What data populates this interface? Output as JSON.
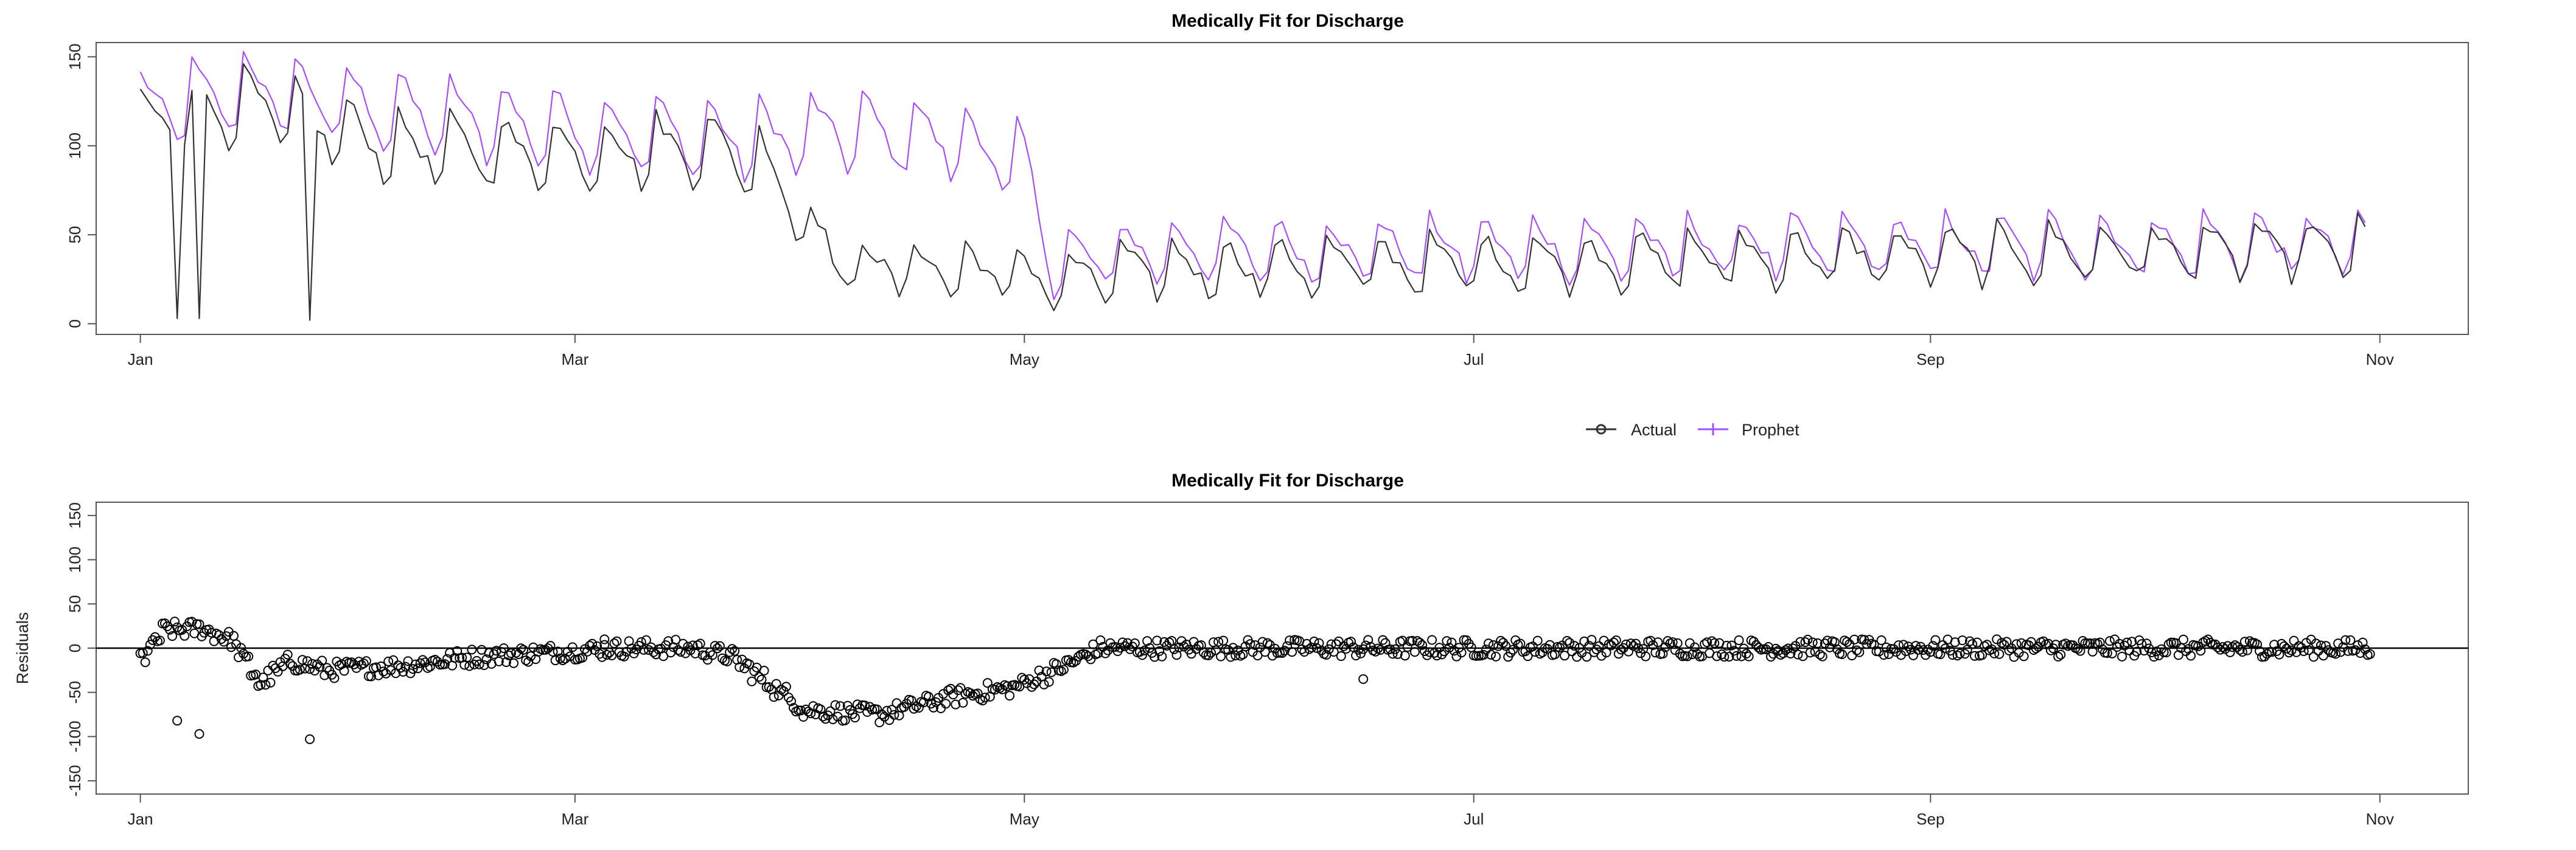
{
  "colors": {
    "actual": "#333333",
    "prophet": "#a64dff",
    "residual_points": "#000000",
    "axis": "#555555"
  },
  "legend": {
    "actual_label": "Actual",
    "prophet_label": "Prophet"
  },
  "chart_data": [
    {
      "type": "line",
      "title": "Medically Fit for Discharge",
      "xlabel": "",
      "ylabel": "",
      "x_axis": {
        "range_days": [
          -6,
          316
        ],
        "ticks": [
          {
            "day": 0,
            "label": "Jan"
          },
          {
            "day": 59,
            "label": "Mar"
          },
          {
            "day": 120,
            "label": "May"
          },
          {
            "day": 181,
            "label": "Jul"
          },
          {
            "day": 243,
            "label": "Sep"
          },
          {
            "day": 304,
            "label": "Nov"
          }
        ]
      },
      "y_axis": {
        "ylim": [
          -6,
          158
        ],
        "ticks": [
          0,
          50,
          100,
          150
        ]
      },
      "legend_position": "bottom-center",
      "series": [
        {
          "name": "Actual",
          "daily": true,
          "x_range_days": [
            0,
            302
          ],
          "level_profile": [
            [
              0,
              108
            ],
            [
              15,
              120
            ],
            [
              35,
              95
            ],
            [
              60,
              92
            ],
            [
              78,
              96
            ],
            [
              85,
              85
            ],
            [
              95,
              30
            ],
            [
              110,
              28
            ],
            [
              120,
              25
            ],
            [
              124,
              20
            ],
            [
              135,
              28
            ],
            [
              302,
              40
            ]
          ],
          "weekly_amplitude": 22,
          "anomalies": [
            {
              "day": 5,
              "value": 3
            },
            {
              "day": 8,
              "value": 3
            },
            {
              "day": 23,
              "value": 2
            }
          ]
        },
        {
          "name": "Prophet",
          "daily": true,
          "x_range_days": [
            0,
            302
          ],
          "level_profile": [
            [
              0,
              115
            ],
            [
              15,
              128
            ],
            [
              35,
              115
            ],
            [
              60,
              105
            ],
            [
              78,
              100
            ],
            [
              85,
              100
            ],
            [
              95,
              105
            ],
            [
              110,
              100
            ],
            [
              120,
              85
            ],
            [
              124,
              30
            ],
            [
              135,
              38
            ],
            [
              302,
              42
            ]
          ],
          "weekly_amplitude": 25
        }
      ]
    },
    {
      "type": "scatter",
      "title": "Medically Fit for Discharge",
      "xlabel": "",
      "ylabel": "Residuals",
      "x_axis": {
        "range_days": [
          -6,
          316
        ],
        "ticks": [
          {
            "day": 0,
            "label": "Jan"
          },
          {
            "day": 59,
            "label": "Mar"
          },
          {
            "day": 120,
            "label": "May"
          },
          {
            "day": 181,
            "label": "Jul"
          },
          {
            "day": 243,
            "label": "Sep"
          },
          {
            "day": 304,
            "label": "Nov"
          }
        ]
      },
      "y_axis": {
        "ylim": [
          -165,
          165
        ],
        "ticks": [
          -150,
          -100,
          -50,
          0,
          50,
          100,
          150
        ]
      },
      "reference_line_y": 0,
      "series": [
        {
          "name": "Residuals",
          "points_per_day": 3,
          "x_range_days": [
            0,
            302
          ],
          "level_profile": [
            [
              0,
              -10
            ],
            [
              3,
              20
            ],
            [
              8,
              22
            ],
            [
              12,
              10
            ],
            [
              16,
              -40
            ],
            [
              20,
              -15
            ],
            [
              25,
              -25
            ],
            [
              35,
              -20
            ],
            [
              45,
              -10
            ],
            [
              55,
              -5
            ],
            [
              65,
              0
            ],
            [
              75,
              0
            ],
            [
              80,
              -10
            ],
            [
              85,
              -40
            ],
            [
              90,
              -70
            ],
            [
              100,
              -75
            ],
            [
              110,
              -55
            ],
            [
              118,
              -45
            ],
            [
              124,
              -25
            ],
            [
              130,
              0
            ],
            [
              145,
              0
            ],
            [
              302,
              0
            ]
          ],
          "spread": 10,
          "outliers": [
            {
              "day": 5,
              "value": -82
            },
            {
              "day": 8,
              "value": -97
            },
            {
              "day": 23,
              "value": -103
            },
            {
              "day": 63,
              "value": 10
            },
            {
              "day": 166,
              "value": -35
            }
          ]
        }
      ]
    }
  ]
}
